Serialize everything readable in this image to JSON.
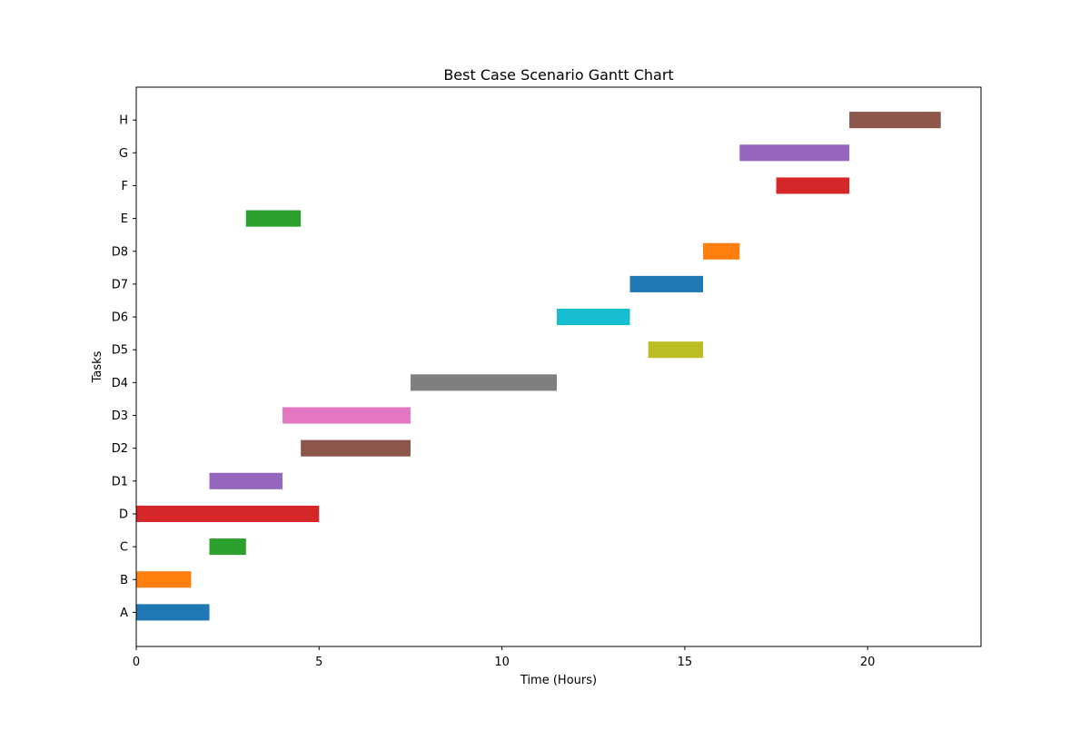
{
  "chart_data": {
    "type": "gantt",
    "title": "Best Case Scenario Gantt Chart",
    "xlabel": "Time (Hours)",
    "ylabel": "Tasks",
    "xlim": [
      0,
      23.1
    ],
    "xticks": [
      0,
      5,
      10,
      15,
      20
    ],
    "grid": false,
    "tasks": [
      {
        "name": "A",
        "start": 0.0,
        "end": 2.0,
        "color": "#1f77b4"
      },
      {
        "name": "B",
        "start": 0.0,
        "end": 1.5,
        "color": "#ff7f0e"
      },
      {
        "name": "C",
        "start": 2.0,
        "end": 3.0,
        "color": "#2ca02c"
      },
      {
        "name": "D",
        "start": 0.0,
        "end": 5.0,
        "color": "#d62728"
      },
      {
        "name": "D1",
        "start": 2.0,
        "end": 4.0,
        "color": "#9467bd"
      },
      {
        "name": "D2",
        "start": 4.5,
        "end": 7.5,
        "color": "#8c564b"
      },
      {
        "name": "D3",
        "start": 4.0,
        "end": 7.5,
        "color": "#e377c2"
      },
      {
        "name": "D4",
        "start": 7.5,
        "end": 11.5,
        "color": "#7f7f7f"
      },
      {
        "name": "D5",
        "start": 14.0,
        "end": 15.5,
        "color": "#bcbd22"
      },
      {
        "name": "D6",
        "start": 11.5,
        "end": 13.5,
        "color": "#17becf"
      },
      {
        "name": "D7",
        "start": 13.5,
        "end": 15.5,
        "color": "#1f77b4"
      },
      {
        "name": "D8",
        "start": 15.5,
        "end": 16.5,
        "color": "#ff7f0e"
      },
      {
        "name": "E",
        "start": 3.0,
        "end": 4.5,
        "color": "#2ca02c"
      },
      {
        "name": "F",
        "start": 17.5,
        "end": 19.5,
        "color": "#d62728"
      },
      {
        "name": "G",
        "start": 16.5,
        "end": 19.5,
        "color": "#9467bd"
      },
      {
        "name": "H",
        "start": 19.5,
        "end": 22.0,
        "color": "#8c564b"
      }
    ]
  }
}
